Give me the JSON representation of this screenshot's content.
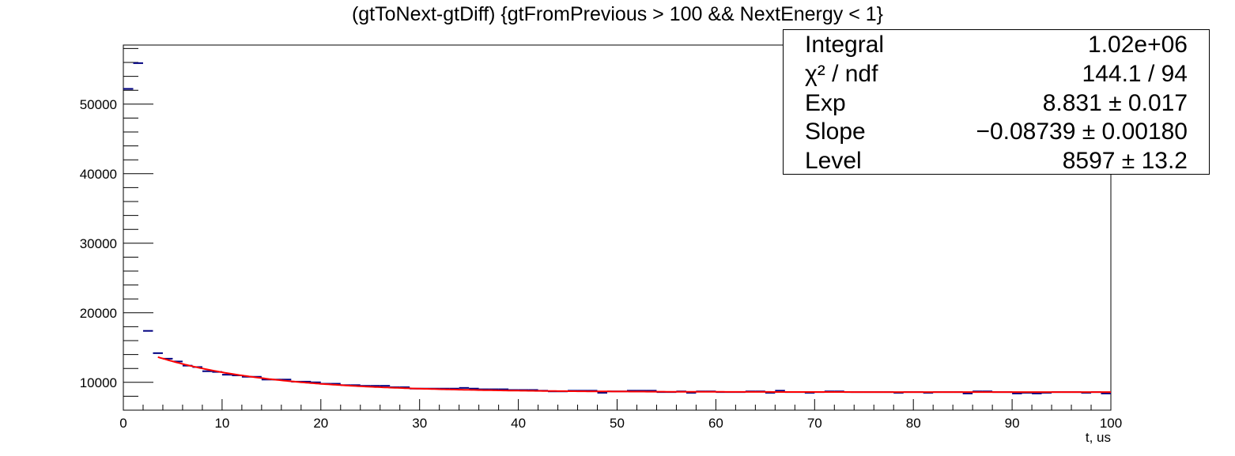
{
  "chart_data": {
    "type": "histogram",
    "title": "(gtToNext-gtDiff) {gtFromPrevious > 100 && NextEnergy < 1}",
    "xlabel": "t, us",
    "ylabel": "",
    "xlim": [
      0,
      100
    ],
    "ylim": [
      6000,
      58500
    ],
    "x_ticks": [
      0,
      10,
      20,
      30,
      40,
      50,
      60,
      70,
      80,
      90,
      100
    ],
    "y_ticks": [
      10000,
      20000,
      30000,
      40000,
      50000
    ],
    "x_tick_labels": [
      "0",
      "10",
      "20",
      "30",
      "40",
      "50",
      "60",
      "70",
      "80",
      "90",
      "100"
    ],
    "y_tick_labels": [
      "10000",
      "20000",
      "30000",
      "40000",
      "50000"
    ],
    "bin_width": 1,
    "bin_centers": [
      0.5,
      1.5,
      2.5,
      3.5,
      4.5,
      5.5,
      6.5,
      7.5,
      8.5,
      9.5,
      10.5,
      11.5,
      12.5,
      13.5,
      14.5,
      15.5,
      16.5,
      17.5,
      18.5,
      19.5,
      20.5,
      21.5,
      22.5,
      23.5,
      24.5,
      25.5,
      26.5,
      27.5,
      28.5,
      29.5,
      30.5,
      31.5,
      32.5,
      33.5,
      34.5,
      35.5,
      36.5,
      37.5,
      38.5,
      39.5,
      40.5,
      41.5,
      42.5,
      43.5,
      44.5,
      45.5,
      46.5,
      47.5,
      48.5,
      49.5,
      50.5,
      51.5,
      52.5,
      53.5,
      54.5,
      55.5,
      56.5,
      57.5,
      58.5,
      59.5,
      60.5,
      61.5,
      62.5,
      63.5,
      64.5,
      65.5,
      66.5,
      67.5,
      68.5,
      69.5,
      70.5,
      71.5,
      72.5,
      73.5,
      74.5,
      75.5,
      76.5,
      77.5,
      78.5,
      79.5,
      80.5,
      81.5,
      82.5,
      83.5,
      84.5,
      85.5,
      86.5,
      87.5,
      88.5,
      89.5,
      90.5,
      91.5,
      92.5,
      93.5,
      94.5,
      95.5,
      96.5,
      97.5,
      98.5,
      99.5
    ],
    "series": [
      {
        "color": "#000080",
        "values": [
          52200,
          55900,
          17400,
          14200,
          13400,
          13000,
          12400,
          12200,
          11600,
          11500,
          11100,
          11000,
          10800,
          10800,
          10400,
          10400,
          10400,
          10100,
          10100,
          10000,
          9800,
          9800,
          9600,
          9600,
          9500,
          9500,
          9500,
          9300,
          9300,
          9100,
          9100,
          9100,
          9100,
          9100,
          9200,
          9100,
          9000,
          9000,
          9000,
          8900,
          8900,
          8900,
          8800,
          8700,
          8700,
          8800,
          8800,
          8800,
          8500,
          8700,
          8700,
          8800,
          8800,
          8800,
          8600,
          8600,
          8700,
          8500,
          8700,
          8700,
          8600,
          8600,
          8600,
          8700,
          8700,
          8500,
          8800,
          8600,
          8600,
          8500,
          8600,
          8700,
          8700,
          8600,
          8600,
          8600,
          8600,
          8600,
          8500,
          8600,
          8600,
          8500,
          8600,
          8600,
          8600,
          8400,
          8700,
          8700,
          8600,
          8600,
          8400,
          8500,
          8400,
          8500,
          8600,
          8600,
          8600,
          8500,
          8600,
          8400
        ]
      }
    ],
    "fit": {
      "color": "#ff0000",
      "x_range": [
        3.5,
        100
      ],
      "function": "Level + exp(Exp + Slope*x)",
      "params": {
        "Exp": 8.831,
        "Slope": -0.08739,
        "Level": 8597
      }
    },
    "stats_box": [
      {
        "label": "Integral",
        "value": "1.02e+06"
      },
      {
        "label": "χ² / ndf",
        "value": "144.1 / 94"
      },
      {
        "label": "Exp",
        "value": "8.831 ± 0.017"
      },
      {
        "label": "Slope",
        "value": "−0.08739 ± 0.00180"
      },
      {
        "label": "Level",
        "value": "8597 ± 13.2"
      }
    ]
  }
}
